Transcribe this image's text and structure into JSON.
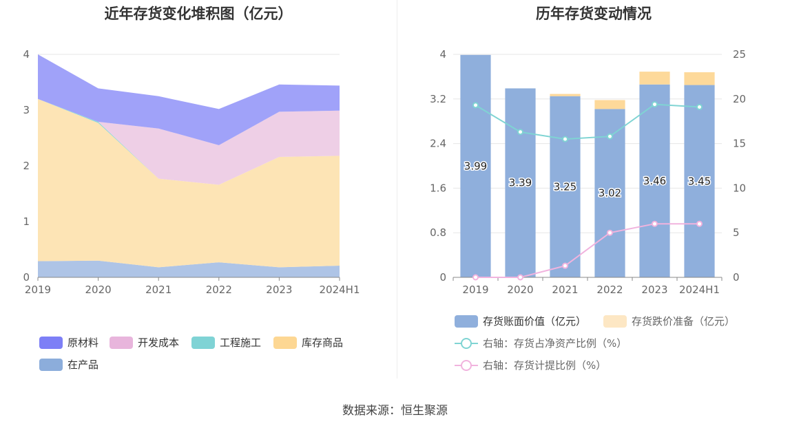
{
  "source_text": "数据来源：恒生聚源",
  "chart_data": [
    {
      "type": "area",
      "title": "近年存货变化堆积图（亿元）",
      "categories": [
        "2019",
        "2020",
        "2021",
        "2022",
        "2023",
        "2024H1"
      ],
      "ylim": [
        0,
        4
      ],
      "yticks": [
        "0",
        "1",
        "2",
        "3",
        "4"
      ],
      "grid": true,
      "legend_position": "bottom-left",
      "stacked": true,
      "series": [
        {
          "name": "在产品",
          "color": "#aec4e6",
          "legend_color": "#8caddb",
          "values": [
            0.29,
            0.3,
            0.18,
            0.27,
            0.18,
            0.21
          ]
        },
        {
          "name": "库存商品",
          "color": "#fde4b5",
          "legend_color": "#fdd793",
          "values": [
            2.91,
            2.47,
            1.59,
            1.39,
            1.98,
            1.97
          ]
        },
        {
          "name": "工程施工",
          "color": "#8ad8d8",
          "legend_color": "#7fd3d5",
          "values": [
            0.0,
            0.02,
            0.0,
            0.0,
            0.0,
            0.0
          ]
        },
        {
          "name": "开发成本",
          "color": "#eecfe6",
          "legend_color": "#e8b5dc",
          "values": [
            0.0,
            0.0,
            0.9,
            0.71,
            0.81,
            0.81
          ]
        },
        {
          "name": "原材料",
          "color": "#a0a2f9",
          "legend_color": "#7d7ff6",
          "values": [
            0.8,
            0.6,
            0.58,
            0.65,
            0.49,
            0.45
          ]
        }
      ],
      "legend_order": [
        "原材料",
        "开发成本",
        "工程施工",
        "库存商品",
        "在产品"
      ]
    },
    {
      "type": "bar",
      "title": "历年存货变动情况",
      "categories": [
        "2019",
        "2020",
        "2021",
        "2022",
        "2023",
        "2024H1"
      ],
      "ylim": [
        0,
        4
      ],
      "yticks": [
        "0",
        "0.8",
        "1.6",
        "2.4",
        "3.2",
        "4"
      ],
      "y2lim": [
        0,
        25
      ],
      "y2ticks": [
        "0",
        "5",
        "10",
        "15",
        "20",
        "25"
      ],
      "grid": true,
      "legend_position": "bottom",
      "stacked": true,
      "series": [
        {
          "name": "存货账面价值（亿元）",
          "color": "#8fafdc",
          "values": [
            3.99,
            3.39,
            3.25,
            3.02,
            3.46,
            3.45
          ],
          "labels": [
            "3.99",
            "3.39",
            "3.25",
            "3.02",
            "3.46",
            "3.45"
          ]
        },
        {
          "name": "存货跌价准备（亿元）",
          "color": "#fdd99a",
          "legend_color": "#fde7c4",
          "values": [
            0.0,
            0.0,
            0.04,
            0.16,
            0.23,
            0.23
          ]
        }
      ],
      "line_series": [
        {
          "name": "右轴：存货占净资产比例（%）",
          "color": "#7fd4d3",
          "values": [
            19.3,
            16.3,
            15.5,
            15.8,
            19.4,
            19.1
          ]
        },
        {
          "name": "右轴：存货计提比例（%）",
          "color": "#f1b3de",
          "values": [
            0.0,
            0.0,
            1.3,
            5.0,
            6.0,
            6.0
          ]
        }
      ]
    }
  ]
}
